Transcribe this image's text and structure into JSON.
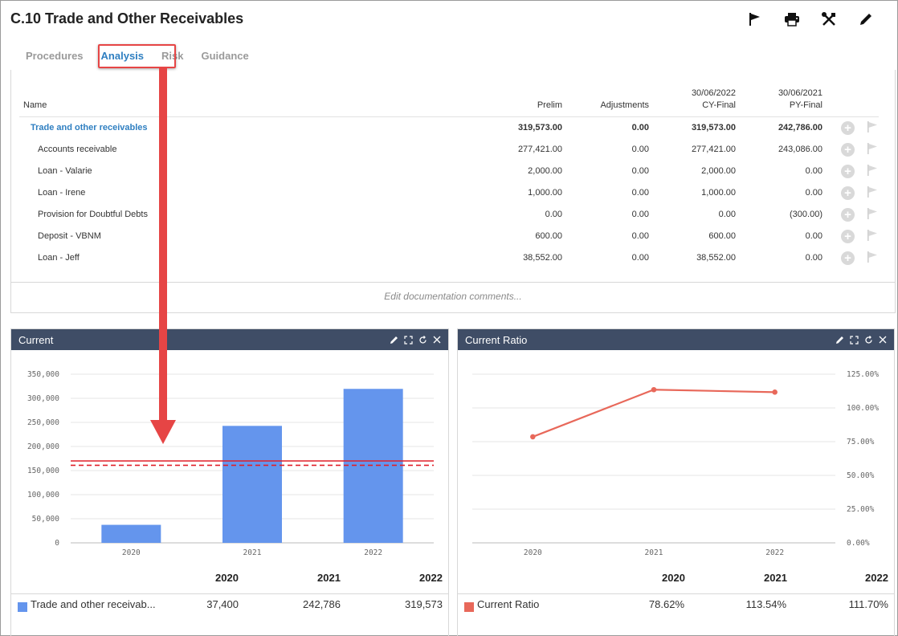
{
  "page": {
    "title": "C.10 Trade and Other Receivables"
  },
  "toolbar": {
    "icons": [
      "flag-icon",
      "print-icon",
      "tools-icon",
      "pencil-icon"
    ]
  },
  "tabs": [
    {
      "label": "Procedures"
    },
    {
      "label": "Analysis",
      "active": true
    },
    {
      "label": "Risk"
    },
    {
      "label": "Guidance"
    }
  ],
  "table": {
    "headers": {
      "name": "Name",
      "prelim": "Prelim",
      "adjustments": "Adjustments",
      "cy_date": "30/06/2022",
      "cy_label": "CY-Final",
      "py_date": "30/06/2021",
      "py_label": "PY-Final"
    },
    "rows": [
      {
        "name": "Trade and other receivables",
        "prelim": "319,573.00",
        "adjustments": "0.00",
        "cy": "319,573.00",
        "py": "242,786.00"
      },
      {
        "name": "Accounts receivable",
        "prelim": "277,421.00",
        "adjustments": "0.00",
        "cy": "277,421.00",
        "py": "243,086.00"
      },
      {
        "name": "Loan - Valarie",
        "prelim": "2,000.00",
        "adjustments": "0.00",
        "cy": "2,000.00",
        "py": "0.00"
      },
      {
        "name": "Loan - Irene",
        "prelim": "1,000.00",
        "adjustments": "0.00",
        "cy": "1,000.00",
        "py": "0.00"
      },
      {
        "name": "Provision for Doubtful Debts",
        "prelim": "0.00",
        "adjustments": "0.00",
        "cy": "0.00",
        "py": "(300.00)"
      },
      {
        "name": "Deposit - VBNM",
        "prelim": "600.00",
        "adjustments": "0.00",
        "cy": "600.00",
        "py": "0.00"
      },
      {
        "name": "Loan - Jeff",
        "prelim": "38,552.00",
        "adjustments": "0.00",
        "cy": "38,552.00",
        "py": "0.00"
      }
    ],
    "doc_comment_placeholder": "Edit documentation comments..."
  },
  "colors": {
    "accent": "#2f7fc1",
    "card_header": "#3f4d66",
    "bar": "#6495ed",
    "line": "#e8685a",
    "reference_line": "#e0202a",
    "highlight": "#e64545"
  },
  "chart_data": [
    {
      "type": "bar",
      "title": "Current",
      "categories": [
        "2020",
        "2021",
        "2022"
      ],
      "series": [
        {
          "name": "Trade and other receivab...",
          "values": [
            37400,
            242786,
            319573
          ],
          "display": [
            "37,400",
            "242,786",
            "319,573"
          ]
        }
      ],
      "yticks": [
        "350,000",
        "300,000",
        "250,000",
        "200,000",
        "150,000",
        "100,000",
        "50,000",
        "0"
      ],
      "ylim": [
        0,
        350000
      ],
      "reference_lines": [
        {
          "value": 170000,
          "style": "solid"
        },
        {
          "value": 161000,
          "style": "dashed"
        }
      ],
      "grid": true
    },
    {
      "type": "line",
      "title": "Current Ratio",
      "categories": [
        "2020",
        "2021",
        "2022"
      ],
      "series": [
        {
          "name": "Current Ratio",
          "values": [
            78.62,
            113.54,
            111.7
          ],
          "display": [
            "78.62%",
            "113.54%",
            "111.70%"
          ]
        }
      ],
      "yticks": [
        "125.00%",
        "100.00%",
        "75.00%",
        "50.00%",
        "25.00%",
        "0.00%"
      ],
      "ylim": [
        0,
        125
      ],
      "y_axis_side": "right",
      "grid": true
    }
  ]
}
